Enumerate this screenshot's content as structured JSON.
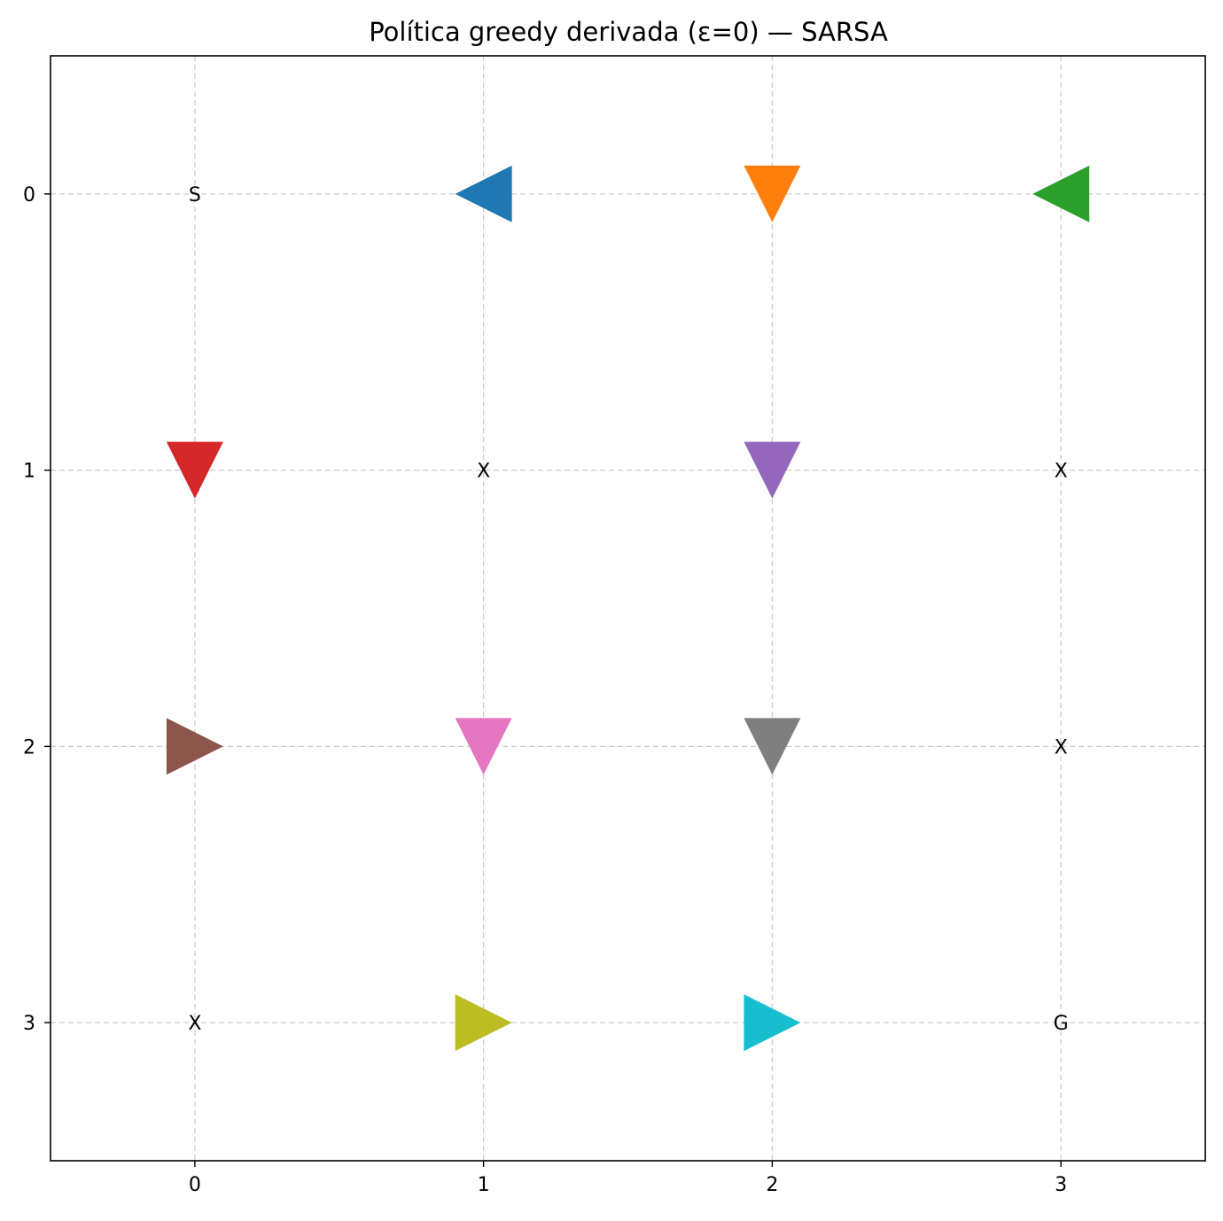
{
  "chart_data": {
    "type": "scatter",
    "title": "Política greedy derivada (ε=0) — SARSA",
    "xlabel": "",
    "ylabel": "",
    "xlim": [
      -0.5,
      3.5
    ],
    "ylim": [
      3.5,
      -0.5
    ],
    "y_inverted": true,
    "grid": true,
    "x_ticks": [
      "0",
      "1",
      "2",
      "3"
    ],
    "y_ticks": [
      "0",
      "1",
      "2",
      "3"
    ],
    "cell_labels": [
      {
        "row": 0,
        "col": 0,
        "text": "S"
      },
      {
        "row": 1,
        "col": 1,
        "text": "X"
      },
      {
        "row": 1,
        "col": 3,
        "text": "X"
      },
      {
        "row": 2,
        "col": 3,
        "text": "X"
      },
      {
        "row": 3,
        "col": 0,
        "text": "X"
      },
      {
        "row": 3,
        "col": 3,
        "text": "G"
      }
    ],
    "arrows": [
      {
        "row": 0,
        "col": 1,
        "direction": "left",
        "color": "#1f77b4"
      },
      {
        "row": 0,
        "col": 2,
        "direction": "down",
        "color": "#ff7f0e"
      },
      {
        "row": 0,
        "col": 3,
        "direction": "left",
        "color": "#2ca02c"
      },
      {
        "row": 1,
        "col": 0,
        "direction": "down",
        "color": "#d62728"
      },
      {
        "row": 1,
        "col": 2,
        "direction": "down",
        "color": "#9467bd"
      },
      {
        "row": 2,
        "col": 0,
        "direction": "right",
        "color": "#8c564b"
      },
      {
        "row": 2,
        "col": 1,
        "direction": "down",
        "color": "#e377c2"
      },
      {
        "row": 2,
        "col": 2,
        "direction": "down",
        "color": "#7f7f7f"
      },
      {
        "row": 3,
        "col": 1,
        "direction": "right",
        "color": "#bcbd22"
      },
      {
        "row": 3,
        "col": 2,
        "direction": "right",
        "color": "#17becf"
      }
    ]
  }
}
